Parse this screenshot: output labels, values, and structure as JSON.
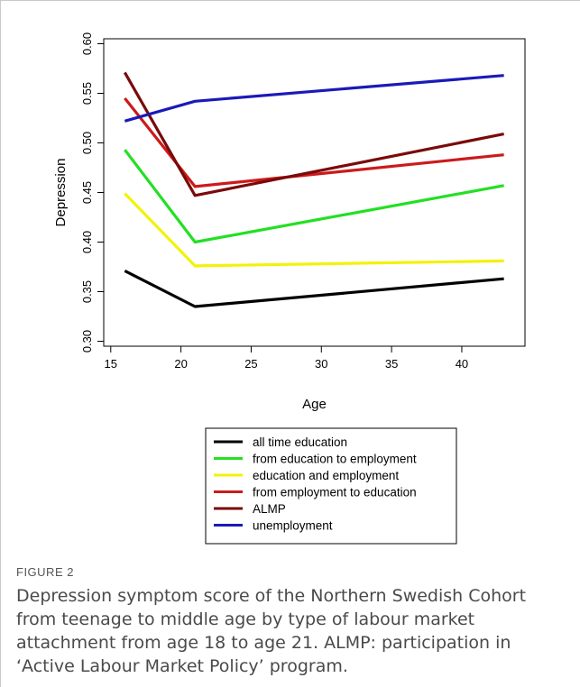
{
  "figure": {
    "label": "FIGURE 2",
    "caption": "Depression symptom score of the Northern Swedish Cohort from teenage to middle age by type of labour market attachment from age 18 to age 21. ALMP: participation in ‘Active Labour Market Policy’ program."
  },
  "chart_data": {
    "type": "line",
    "title": "",
    "xlabel": "Age",
    "ylabel": "Depression",
    "xlim": [
      14.5,
      44.5
    ],
    "ylim": [
      0.295,
      0.605
    ],
    "x_ticks": [
      15,
      20,
      25,
      30,
      35,
      40
    ],
    "y_ticks": [
      0.3,
      0.35,
      0.4,
      0.45,
      0.5,
      0.55,
      0.6
    ],
    "y_tick_labels": [
      "0.30",
      "0.35",
      "0.40",
      "0.45",
      "0.50",
      "0.55",
      "0.60"
    ],
    "grid": false,
    "legend_position": "bottom-center",
    "series": [
      {
        "name": "all time education",
        "color": "#000000",
        "x": [
          16,
          21,
          43
        ],
        "y": [
          0.371,
          0.335,
          0.363
        ]
      },
      {
        "name": "from education to employment",
        "color": "#22e022",
        "x": [
          16,
          21,
          43
        ],
        "y": [
          0.493,
          0.4,
          0.457
        ]
      },
      {
        "name": "education and employment",
        "color": "#f2f20a",
        "x": [
          16,
          21,
          43
        ],
        "y": [
          0.449,
          0.376,
          0.381
        ]
      },
      {
        "name": "from employment to education",
        "color": "#cc1a1a",
        "x": [
          16,
          21,
          43
        ],
        "y": [
          0.545,
          0.456,
          0.488
        ]
      },
      {
        "name": "ALMP",
        "color": "#7a0a0a",
        "x": [
          16,
          21,
          43
        ],
        "y": [
          0.571,
          0.447,
          0.509
        ]
      },
      {
        "name": "unemployment",
        "color": "#1a1ab8",
        "x": [
          16,
          21,
          43
        ],
        "y": [
          0.522,
          0.542,
          0.568
        ]
      }
    ]
  }
}
